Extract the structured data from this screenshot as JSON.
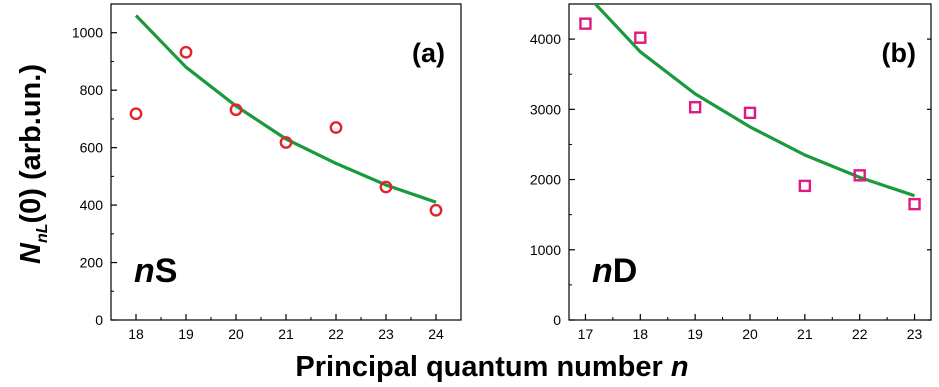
{
  "colors": {
    "fit_line": "#1a9a3c",
    "ns_marker": "#e3232a",
    "nd_marker": "#e0197f",
    "axis": "#000000"
  },
  "axes": {
    "xlabel_text": "Principal quantum number ",
    "xlabel_var": "n",
    "ylabel_main": "N",
    "ylabel_sub": "nL",
    "ylabel_rest": "(0) (arb.un.)"
  },
  "chart_data": [
    {
      "type": "scatter",
      "panel_label": "(a)",
      "series_label_italic": "n",
      "series_label_rest": "S",
      "marker": "circle",
      "xlim": [
        17.5,
        24.5
      ],
      "ylim": [
        0,
        1100
      ],
      "xticks": [
        18,
        19,
        20,
        21,
        22,
        23,
        24
      ],
      "yticks": [
        0,
        200,
        400,
        600,
        800,
        1000
      ],
      "points": {
        "x": [
          18,
          19,
          20,
          21,
          22,
          23,
          24
        ],
        "y": [
          718,
          932,
          732,
          618,
          670,
          463,
          382
        ]
      },
      "fit": {
        "x": [
          18,
          19,
          20,
          21,
          22,
          23,
          24
        ],
        "y": [
          1060,
          880,
          745,
          630,
          545,
          470,
          410
        ]
      }
    },
    {
      "type": "scatter",
      "panel_label": "(b)",
      "series_label_italic": "n",
      "series_label_rest": "D",
      "marker": "square",
      "xlim": [
        16.7,
        23.3
      ],
      "ylim": [
        0,
        4500
      ],
      "xticks": [
        17,
        18,
        19,
        20,
        21,
        22,
        23
      ],
      "yticks": [
        0,
        1000,
        2000,
        3000,
        4000
      ],
      "points": {
        "x": [
          17,
          18,
          19,
          20,
          21,
          22,
          23
        ],
        "y": [
          4220,
          4020,
          3030,
          2950,
          1910,
          2060,
          1650
        ]
      },
      "fit": {
        "x": [
          17,
          18,
          19,
          20,
          21,
          22,
          23
        ],
        "y": [
          4650,
          3820,
          3220,
          2750,
          2350,
          2030,
          1770
        ]
      }
    }
  ]
}
